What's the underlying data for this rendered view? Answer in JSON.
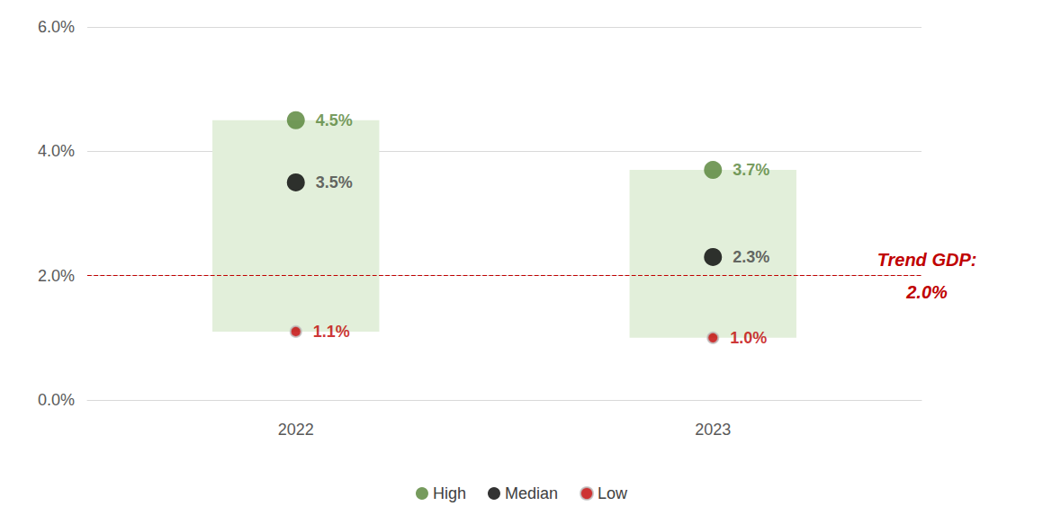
{
  "chart_data": {
    "type": "scatter",
    "categories": [
      "2022",
      "2023"
    ],
    "series": [
      {
        "name": "High",
        "color": "#548235",
        "values": [
          4.5,
          3.7
        ],
        "value_labels": [
          "4.5%",
          "3.7%"
        ]
      },
      {
        "name": "Median",
        "color": "#000000",
        "values": [
          3.5,
          2.3
        ],
        "value_labels": [
          "3.5%",
          "2.3%"
        ]
      },
      {
        "name": "Low",
        "color": "#c00000",
        "values": [
          1.1,
          1.0
        ],
        "value_labels": [
          "1.1%",
          "1.0%"
        ]
      }
    ],
    "ylim": [
      0,
      6
    ],
    "yticks": [
      {
        "value": 0,
        "label": "0.0%"
      },
      {
        "value": 2,
        "label": "2.0%"
      },
      {
        "value": 4,
        "label": "4.0%"
      },
      {
        "value": 6,
        "label": "6.0%"
      }
    ],
    "reference_line": {
      "value": 2.0,
      "label": "Trend GDP:\n2.0%",
      "color": "#c00000"
    },
    "grid": true,
    "legend": "bottom",
    "data_labels": true
  }
}
